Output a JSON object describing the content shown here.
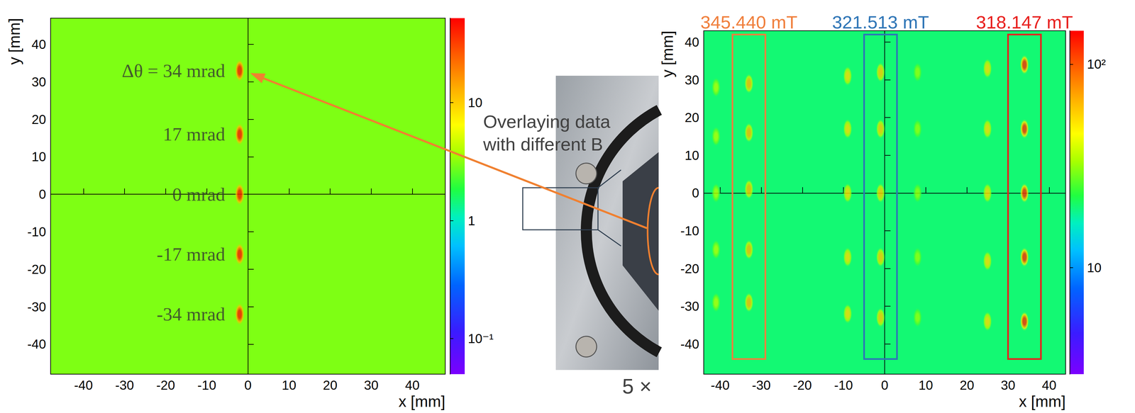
{
  "chart_data": [
    {
      "type": "scatter",
      "marker": "ellipse",
      "xlabel": "x [mm]",
      "ylabel": "y [mm]",
      "xlim": [
        -48,
        48
      ],
      "ylim": [
        -48,
        47
      ],
      "xticks": [
        -40,
        -30,
        -20,
        -10,
        0,
        10,
        20,
        30,
        40
      ],
      "yticks": [
        -40,
        -30,
        -20,
        -10,
        0,
        10,
        20,
        30,
        40
      ],
      "grid": false,
      "background_counts": 3,
      "colorbar": {
        "lim": [
          0.05,
          52
        ],
        "ticks": [
          {
            "value": 0.1,
            "label": "10⁻¹"
          },
          1,
          10
        ],
        "log": true
      },
      "spots": [
        {
          "x": -2,
          "y": 33,
          "counts": 45,
          "label": "Δθ = 34 mrad"
        },
        {
          "x": -2,
          "y": 16,
          "counts": 45,
          "label": "17 mrad"
        },
        {
          "x": -2,
          "y": 0,
          "counts": 45,
          "label": "0 mrad"
        },
        {
          "x": -2,
          "y": -16,
          "counts": 45,
          "label": "-17 mrad"
        },
        {
          "x": -2,
          "y": -32,
          "counts": 45,
          "label": "-34 mrad"
        }
      ]
    },
    {
      "type": "scatter",
      "marker": "ellipse",
      "xlabel": "x [mm]",
      "ylabel": "y [mm]",
      "xlim": [
        -44,
        44
      ],
      "ylim": [
        -48,
        43
      ],
      "xticks": [
        -40,
        -30,
        -20,
        -10,
        0,
        10,
        20,
        30,
        40
      ],
      "yticks": [
        -40,
        -30,
        -20,
        -10,
        0,
        10,
        20,
        30,
        40
      ],
      "grid": false,
      "background_counts": 20,
      "colorbar": {
        "lim": [
          3,
          146
        ],
        "ticks": [
          10,
          {
            "value": 100,
            "label": "10²"
          }
        ],
        "log": true
      },
      "spots": [
        {
          "x": -41,
          "y": 28,
          "counts": 35
        },
        {
          "x": -41,
          "y": 15,
          "counts": 35
        },
        {
          "x": -41,
          "y": 0,
          "counts": 35
        },
        {
          "x": -41,
          "y": -15,
          "counts": 35
        },
        {
          "x": -41,
          "y": -29,
          "counts": 35
        },
        {
          "x": -33,
          "y": 29,
          "counts": 65
        },
        {
          "x": -33,
          "y": 16,
          "counts": 65
        },
        {
          "x": -33,
          "y": 1,
          "counts": 65
        },
        {
          "x": -33,
          "y": -15,
          "counts": 65
        },
        {
          "x": -33,
          "y": -29,
          "counts": 65
        },
        {
          "x": -9,
          "y": 31,
          "counts": 55
        },
        {
          "x": -9,
          "y": 17,
          "counts": 55
        },
        {
          "x": -9,
          "y": 0,
          "counts": 55
        },
        {
          "x": -9,
          "y": -17,
          "counts": 55
        },
        {
          "x": -9,
          "y": -32,
          "counts": 55
        },
        {
          "x": -1,
          "y": 32,
          "counts": 60
        },
        {
          "x": -1,
          "y": 17,
          "counts": 60
        },
        {
          "x": -1,
          "y": 0,
          "counts": 60
        },
        {
          "x": -1,
          "y": -17,
          "counts": 60
        },
        {
          "x": -1,
          "y": -33,
          "counts": 60
        },
        {
          "x": 8,
          "y": 32,
          "counts": 32
        },
        {
          "x": 8,
          "y": 17,
          "counts": 32
        },
        {
          "x": 8,
          "y": 0,
          "counts": 32
        },
        {
          "x": 8,
          "y": -17,
          "counts": 32
        },
        {
          "x": 8,
          "y": -33,
          "counts": 32
        },
        {
          "x": 25,
          "y": 33,
          "counts": 55
        },
        {
          "x": 25,
          "y": 17,
          "counts": 55
        },
        {
          "x": 25,
          "y": 0,
          "counts": 55
        },
        {
          "x": 25,
          "y": -18,
          "counts": 55
        },
        {
          "x": 25,
          "y": -34,
          "counts": 55
        },
        {
          "x": 34,
          "y": 34,
          "counts": 120
        },
        {
          "x": 34,
          "y": 17,
          "counts": 120
        },
        {
          "x": 34,
          "y": 0,
          "counts": 120
        },
        {
          "x": 34,
          "y": -17,
          "counts": 120
        },
        {
          "x": 34,
          "y": -34,
          "counts": 120
        }
      ],
      "boxes": [
        {
          "label": "345.440 mT",
          "color": "#f07f3c",
          "x": [
            -37,
            -29
          ],
          "y": [
            -44,
            42
          ]
        },
        {
          "label": "321.513 mT",
          "color": "#2e75b6",
          "x": [
            -5,
            3
          ],
          "y": [
            -44,
            42
          ]
        },
        {
          "label": "318.147 mT",
          "color": "#e8201e",
          "x": [
            30,
            38
          ],
          "y": [
            -44,
            42
          ]
        }
      ]
    }
  ],
  "inset": {
    "caption_lines": [
      "Overlaying data",
      "with different B"
    ],
    "magnification": "5 ×"
  }
}
